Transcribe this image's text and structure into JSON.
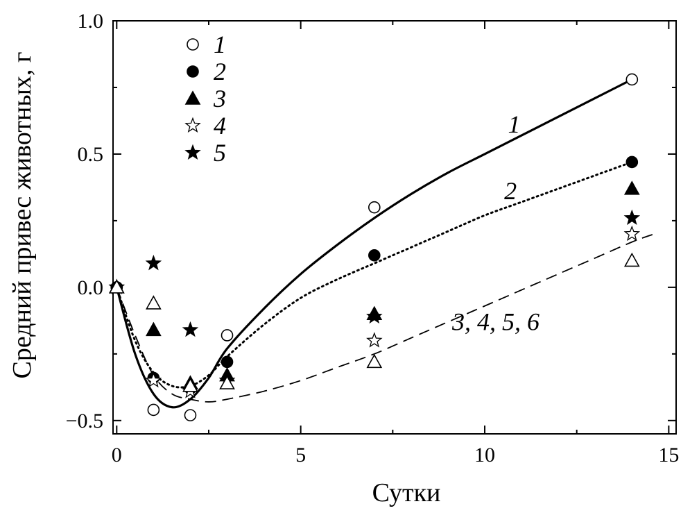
{
  "chart_data": {
    "type": "scatter",
    "xlabel": "Сутки",
    "ylabel": "Средний привес животных, г",
    "xlim": [
      -0.1,
      15.2
    ],
    "ylim": [
      -0.55,
      1.0
    ],
    "x_ticks": [
      {
        "value": 0,
        "label": "0"
      },
      {
        "value": 5,
        "label": "5"
      },
      {
        "value": 10,
        "label": "10"
      },
      {
        "value": 15,
        "label": "15"
      }
    ],
    "x_minor_ticks": [
      2.5,
      7.5,
      12.5
    ],
    "y_ticks": [
      {
        "value": -0.5,
        "label": "−0.5"
      },
      {
        "value": 0.0,
        "label": "0.0"
      },
      {
        "value": 0.5,
        "label": "0.5"
      },
      {
        "value": 1.0,
        "label": "1.0"
      }
    ],
    "y_minor_ticks": [
      -0.25,
      0.25,
      0.75
    ],
    "grid": false,
    "legend_position": "top-left",
    "series": [
      {
        "name": "1",
        "marker": "circle-open",
        "x": [
          0,
          1,
          2,
          3,
          7,
          14
        ],
        "y": [
          0.0,
          -0.46,
          -0.48,
          -0.18,
          0.3,
          0.78
        ]
      },
      {
        "name": "2",
        "marker": "circle-filled",
        "x": [
          0,
          1,
          2,
          3,
          7,
          14
        ],
        "y": [
          0.0,
          -0.34,
          -0.38,
          -0.28,
          0.12,
          0.47
        ]
      },
      {
        "name": "3",
        "marker": "triangle-filled",
        "x": [
          0,
          1,
          2,
          3,
          7,
          14
        ],
        "y": [
          0.0,
          -0.16,
          -0.36,
          -0.33,
          -0.1,
          0.37
        ]
      },
      {
        "name": "4",
        "marker": "star-open",
        "x": [
          0,
          1,
          2,
          3,
          7,
          14
        ],
        "y": [
          0.0,
          -0.35,
          -0.39,
          -0.35,
          -0.2,
          0.2
        ]
      },
      {
        "name": "5",
        "marker": "star-filled",
        "x": [
          0,
          1,
          2,
          3,
          7,
          14
        ],
        "y": [
          0.0,
          0.09,
          -0.16,
          -0.35,
          -0.11,
          0.26
        ]
      },
      {
        "name": "",
        "marker": "triangle-open",
        "x": [
          0,
          1,
          2,
          3,
          7,
          14
        ],
        "y": [
          0.0,
          -0.06,
          -0.37,
          -0.36,
          -0.28,
          0.1
        ]
      }
    ],
    "fit_curves": [
      {
        "label": "1",
        "style": "solid",
        "label_x": 10.8,
        "label_y": 0.58,
        "x": [
          0,
          0.5,
          1.0,
          1.5,
          2.0,
          2.5,
          3.0,
          4.0,
          5.0,
          6.0,
          7.0,
          8.0,
          9.0,
          10.0,
          11.0,
          12.0,
          13.0,
          14.0
        ],
        "y": [
          0.0,
          -0.25,
          -0.4,
          -0.45,
          -0.42,
          -0.34,
          -0.23,
          -0.08,
          0.05,
          0.16,
          0.26,
          0.35,
          0.43,
          0.5,
          0.57,
          0.64,
          0.71,
          0.78
        ]
      },
      {
        "label": "2",
        "style": "dotted",
        "label_x": 10.7,
        "label_y": 0.33,
        "x": [
          0,
          0.5,
          1.0,
          1.5,
          2.0,
          2.5,
          3.0,
          4.0,
          5.0,
          6.0,
          7.0,
          8.0,
          9.0,
          10.0,
          11.0,
          12.0,
          13.0,
          14.0
        ],
        "y": [
          0.0,
          -0.2,
          -0.32,
          -0.37,
          -0.37,
          -0.33,
          -0.26,
          -0.14,
          -0.04,
          0.03,
          0.09,
          0.15,
          0.21,
          0.27,
          0.32,
          0.37,
          0.42,
          0.47
        ]
      },
      {
        "label": "3, 4, 5, 6",
        "style": "dashed",
        "label_x": 10.3,
        "label_y": -0.16,
        "x": [
          0,
          0.5,
          1.0,
          1.5,
          2.0,
          2.5,
          3.0,
          4.0,
          5.0,
          6.0,
          7.0,
          8.0,
          9.0,
          10.0,
          11.0,
          12.0,
          13.0,
          14.0,
          14.6
        ],
        "y": [
          0.0,
          -0.18,
          -0.33,
          -0.4,
          -0.42,
          -0.43,
          -0.42,
          -0.39,
          -0.35,
          -0.3,
          -0.25,
          -0.19,
          -0.13,
          -0.07,
          -0.01,
          0.05,
          0.11,
          0.17,
          0.2
        ]
      }
    ]
  }
}
